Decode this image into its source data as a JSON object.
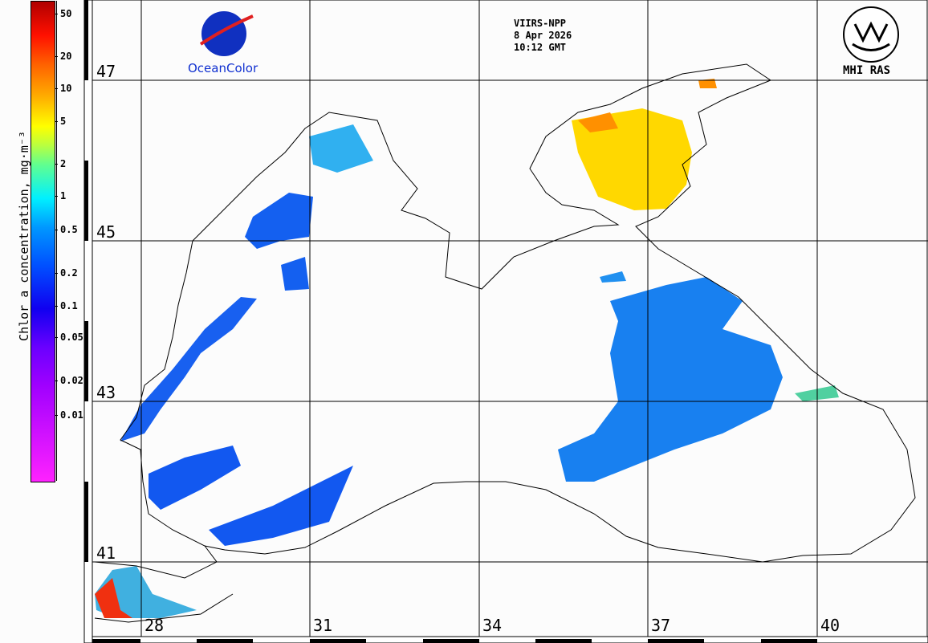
{
  "colorbar": {
    "label": "Chlor_a concentration, mg·m⁻³",
    "ticks": [
      "50",
      "20",
      "10",
      "5",
      "2",
      "1",
      "0.5",
      "0.2",
      "0.1",
      "0.05",
      "0.02",
      "0.01"
    ]
  },
  "header": {
    "sensor": "VIIRS-NPP",
    "date": "8 Apr 2026",
    "time": "10:12 GMT"
  },
  "logos": {
    "left_brand": "OceanColor",
    "left_logo_text": "NASA",
    "right": "MHI RAS"
  },
  "grid": {
    "latitudes": [
      "47",
      "45",
      "43",
      "41"
    ],
    "longitudes": [
      "28",
      "31",
      "34",
      "37",
      "40"
    ]
  }
}
